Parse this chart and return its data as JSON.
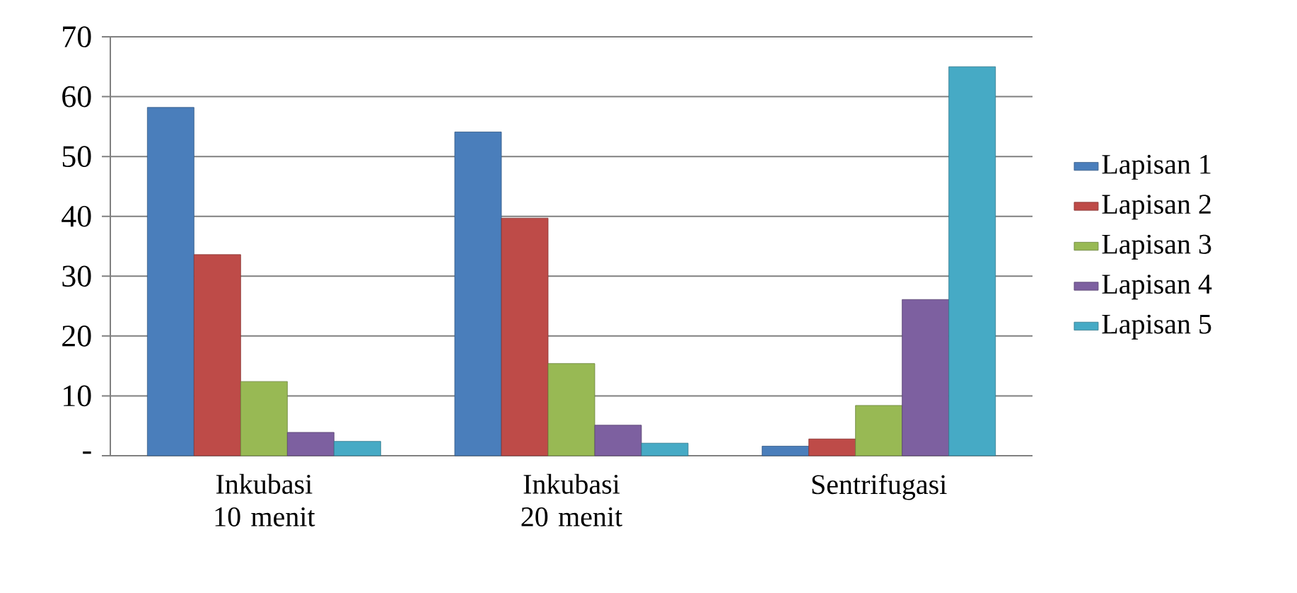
{
  "chart_data": {
    "type": "bar",
    "categories": [
      "Inkubasi 10 menit",
      "Inkubasi 20 menit",
      "Sentrifugasi"
    ],
    "series": [
      {
        "name": "Lapisan 1",
        "color": "#4a7ebb",
        "values": [
          58.2,
          54.1,
          1.6
        ]
      },
      {
        "name": "Lapisan 2",
        "color": "#be4b48",
        "values": [
          33.6,
          39.7,
          2.8
        ]
      },
      {
        "name": "Lapisan 3",
        "color": "#98b954",
        "values": [
          12.4,
          15.4,
          8.4
        ]
      },
      {
        "name": "Lapisan 4",
        "color": "#7d60a0",
        "values": [
          3.9,
          5.1,
          26.1
        ]
      },
      {
        "name": "Lapisan 5",
        "color": "#46aac5",
        "values": [
          2.4,
          2.1,
          65.0
        ]
      }
    ],
    "ylim": [
      0,
      70
    ],
    "yticks": [
      {
        "value": 0,
        "label": "-"
      },
      10,
      20,
      30,
      40,
      50,
      60,
      70
    ],
    "grid": "y",
    "legend": "right"
  }
}
